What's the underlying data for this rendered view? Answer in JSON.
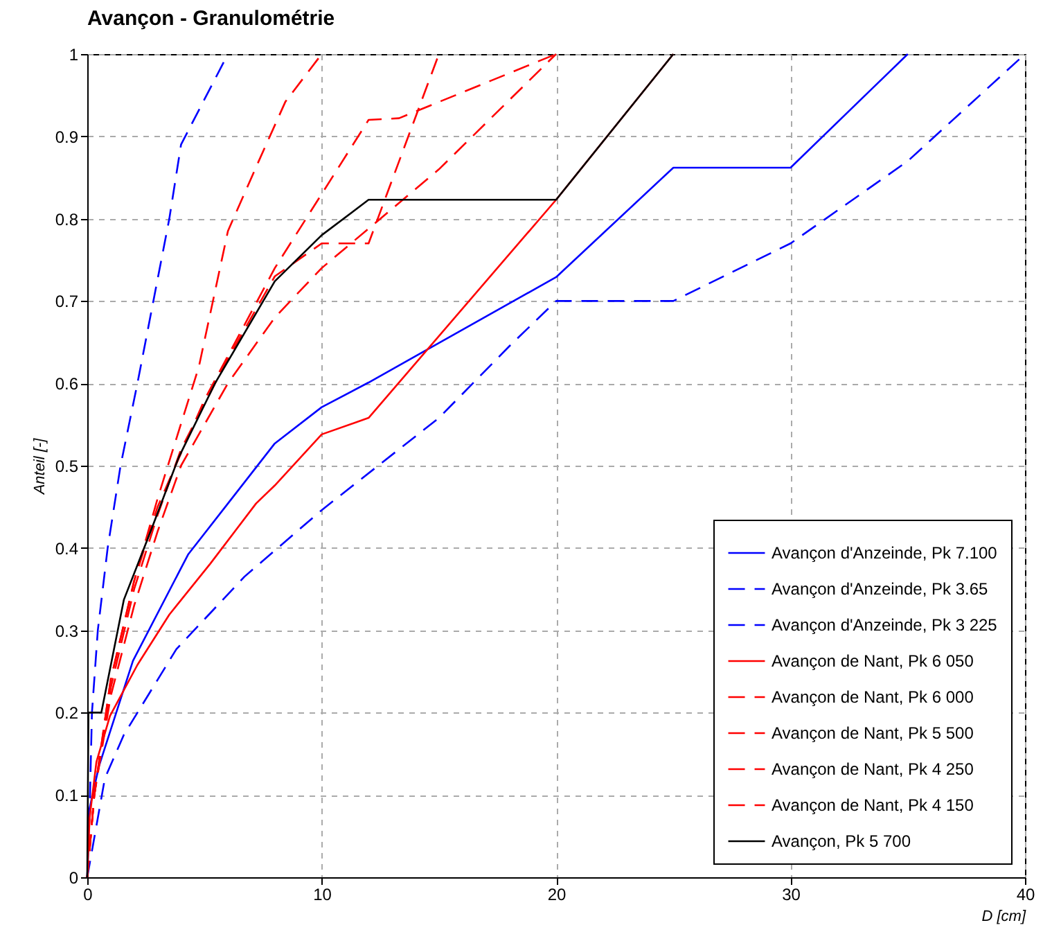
{
  "chart_data": {
    "type": "line",
    "title": "Avançon -  Granulométrie",
    "xlabel": "D [cm]",
    "ylabel": "Anteil [-]",
    "xlim": [
      0,
      40
    ],
    "xticks": [
      0,
      10,
      20,
      30,
      40
    ],
    "ylim": [
      0,
      1
    ],
    "yticks": [
      0,
      0.1,
      0.2,
      0.3,
      0.4,
      0.5,
      0.6,
      0.7,
      0.8,
      0.9,
      1
    ],
    "grid": true,
    "legend": "bottom right",
    "marker": "none",
    "series": [
      {
        "name": "Avançon d'Anzeinde, Pk 7.100",
        "color": "#0000ff",
        "line_style": "solid",
        "x": [
          0,
          0.1,
          0.5,
          1.95,
          4.3,
          6,
          8,
          10,
          12,
          20,
          25,
          30,
          35
        ],
        "values": [
          0,
          0.084,
          0.135,
          0.263,
          0.392,
          0.454,
          0.527,
          0.571,
          0.601,
          0.729,
          0.862,
          0.862,
          1
        ]
      },
      {
        "name": "Avançon d'Anzeinde, Pk 3.65",
        "color": "#0000ff",
        "line_style": "dashed",
        "x": [
          0,
          0.1,
          0.2,
          0.45,
          0.87,
          1.42,
          2.14,
          2.82,
          3.5,
          4,
          6
        ],
        "values": [
          0,
          0.08,
          0.2,
          0.3,
          0.4,
          0.5,
          0.6,
          0.7,
          0.8,
          0.89,
          1
        ]
      },
      {
        "name": "Avançon d'Anzeinde, Pk 3 225",
        "color": "#0000ff",
        "line_style": "dashed",
        "x": [
          0,
          0.75,
          1.56,
          3.8,
          6.7,
          10,
          15,
          18,
          20,
          25,
          30,
          35,
          40
        ],
        "values": [
          0,
          0.12,
          0.173,
          0.277,
          0.365,
          0.446,
          0.558,
          0.645,
          0.7,
          0.7,
          0.77,
          0.87,
          1
        ]
      },
      {
        "name": "Avançon de Nant, Pk 6 050",
        "color": "#ff0000",
        "line_style": "solid",
        "x": [
          0,
          0.1,
          0.39,
          0.97,
          2.14,
          3.5,
          5.25,
          7.2,
          8,
          10,
          12,
          20,
          25
        ],
        "values": [
          0,
          0.072,
          0.14,
          0.196,
          0.258,
          0.319,
          0.381,
          0.454,
          0.476,
          0.538,
          0.558,
          0.823,
          1
        ]
      },
      {
        "name": "Avançon de Nant, Pk 6 000",
        "color": "#ff0000",
        "line_style": "dashed",
        "x": [
          0,
          0.3,
          1,
          2,
          3,
          4,
          6,
          8,
          10,
          15,
          20
        ],
        "values": [
          0,
          0.1,
          0.22,
          0.33,
          0.42,
          0.5,
          0.6,
          0.68,
          0.74,
          0.86,
          1
        ]
      },
      {
        "name": "Avançon de Nant, Pk 5 500",
        "color": "#ff0000",
        "line_style": "dashed",
        "x": [
          0,
          0.3,
          1,
          2,
          3,
          4.76,
          6,
          7.3,
          8.45,
          10
        ],
        "values": [
          0,
          0.1,
          0.24,
          0.36,
          0.46,
          0.62,
          0.785,
          0.869,
          0.942,
          1
        ]
      },
      {
        "name": "Avançon de Nant, Pk 4 250",
        "color": "#ff0000",
        "line_style": "dashed",
        "x": [
          0,
          0.3,
          1,
          2,
          3,
          4,
          6,
          8,
          10,
          12,
          15
        ],
        "values": [
          0,
          0.1,
          0.23,
          0.35,
          0.44,
          0.52,
          0.63,
          0.73,
          0.77,
          0.77,
          1
        ]
      },
      {
        "name": "Avançon de Nant, Pk 4 150",
        "color": "#ff0000",
        "line_style": "dashed",
        "x": [
          0,
          0.3,
          1,
          2,
          3,
          5,
          8,
          10,
          12,
          13.3,
          20
        ],
        "values": [
          0,
          0.1,
          0.24,
          0.36,
          0.45,
          0.58,
          0.74,
          0.83,
          0.92,
          0.922,
          1
        ]
      },
      {
        "name": "Avançon, Pk 5 700",
        "color": "#000000",
        "line_style": "solid",
        "x": [
          0,
          0.05,
          0.6,
          1.56,
          2.7,
          3.9,
          5.45,
          8,
          10,
          12,
          20,
          25
        ],
        "values": [
          0,
          0.2,
          0.2,
          0.337,
          0.42,
          0.51,
          0.6,
          0.724,
          0.78,
          0.823,
          0.823,
          1
        ]
      }
    ]
  }
}
